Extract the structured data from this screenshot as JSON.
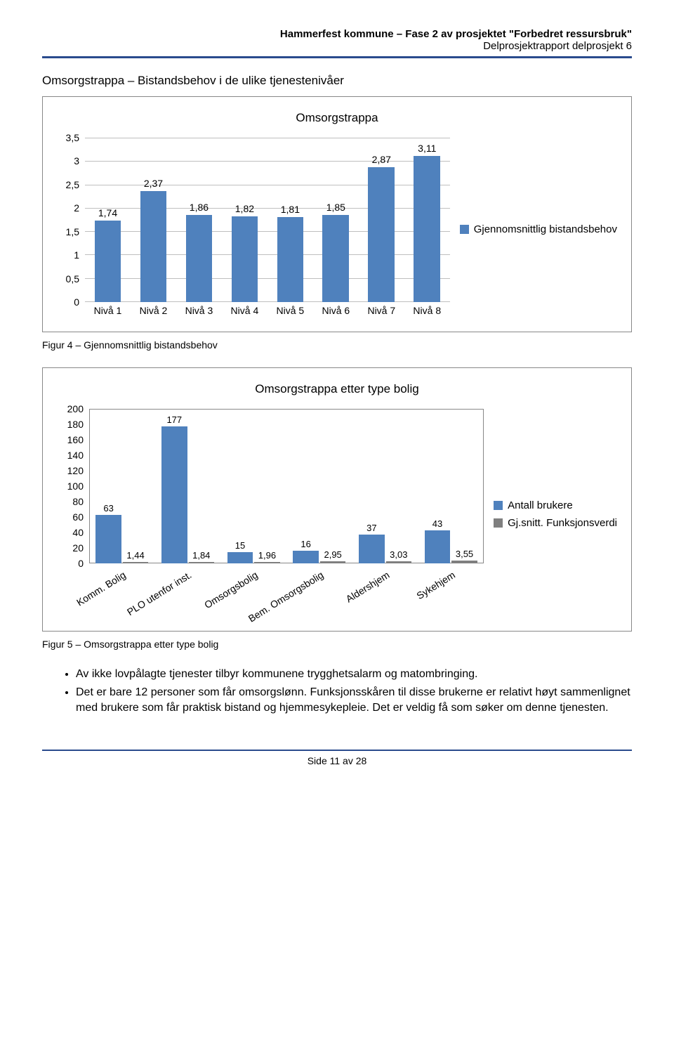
{
  "header": {
    "line1": "Hammerfest kommune – Fase 2 av prosjektet \"Forbedret ressursbruk\"",
    "line2": "Delprosjektrapport delprosjekt 6"
  },
  "section1_title": "Omsorgstrappa – Bistandsbehov i de ulike tjenestenivåer",
  "chart1": {
    "title": "Omsorgstrappa",
    "ymax": 3.5,
    "ytick_step": 0.5,
    "yticks": [
      "0",
      "0,5",
      "1",
      "1,5",
      "2",
      "2,5",
      "3",
      "3,5"
    ],
    "categories": [
      "Nivå 1",
      "Nivå 2",
      "Nivå 3",
      "Nivå 4",
      "Nivå 5",
      "Nivå 6",
      "Nivå 7",
      "Nivå 8"
    ],
    "values": [
      1.74,
      2.37,
      1.86,
      1.82,
      1.81,
      1.85,
      2.87,
      3.11
    ],
    "labels": [
      "1,74",
      "2,37",
      "1,86",
      "1,82",
      "1,81",
      "1,85",
      "2,87",
      "3,11"
    ],
    "bar_color": "#4f81bd",
    "grid_color": "#bfbfbf",
    "legend_label": "Gjennomsnittlig bistandsbehov"
  },
  "fig4_caption": "Figur 4 – Gjennomsnittlig bistandsbehov",
  "chart2": {
    "title": "Omsorgstrappa etter type bolig",
    "ymax": 200,
    "ytick_step": 20,
    "yticks": [
      "0",
      "20",
      "40",
      "60",
      "80",
      "100",
      "120",
      "140",
      "160",
      "180",
      "200"
    ],
    "categories": [
      "Komm. Bolig",
      "PLO utenfor inst.",
      "Omsorgsbolig",
      "Bem. Omsorgsbolig",
      "Aldershjem",
      "Sykehjem"
    ],
    "series": [
      {
        "name": "Antall brukere",
        "color": "#4f81bd",
        "values": [
          63,
          177,
          15,
          16,
          37,
          43
        ],
        "labels": [
          "63",
          "177",
          "15",
          "16",
          "37",
          "43"
        ]
      },
      {
        "name": "Gj.snitt. Funksjonsverdi",
        "color": "#7f7f7f",
        "values": [
          1.44,
          1.84,
          1.96,
          2.95,
          3.03,
          3.55
        ],
        "labels": [
          "1,44",
          "1,84",
          "1,96",
          "2,95",
          "3,03",
          "3,55"
        ]
      }
    ]
  },
  "fig5_caption": "Figur 5 – Omsorgstrappa etter type bolig",
  "bullets": [
    "Av ikke lovpålagte tjenester tilbyr kommunene trygghetsalarm og matombringing.",
    "Det er bare 12 personer som får omsorgslønn. Funksjonsskåren til disse brukerne er relativt høyt sammenlignet med brukere som får praktisk bistand og hjemmesykepleie. Det er veldig få som søker om denne tjenesten."
  ],
  "footer": "Side 11 av 28"
}
